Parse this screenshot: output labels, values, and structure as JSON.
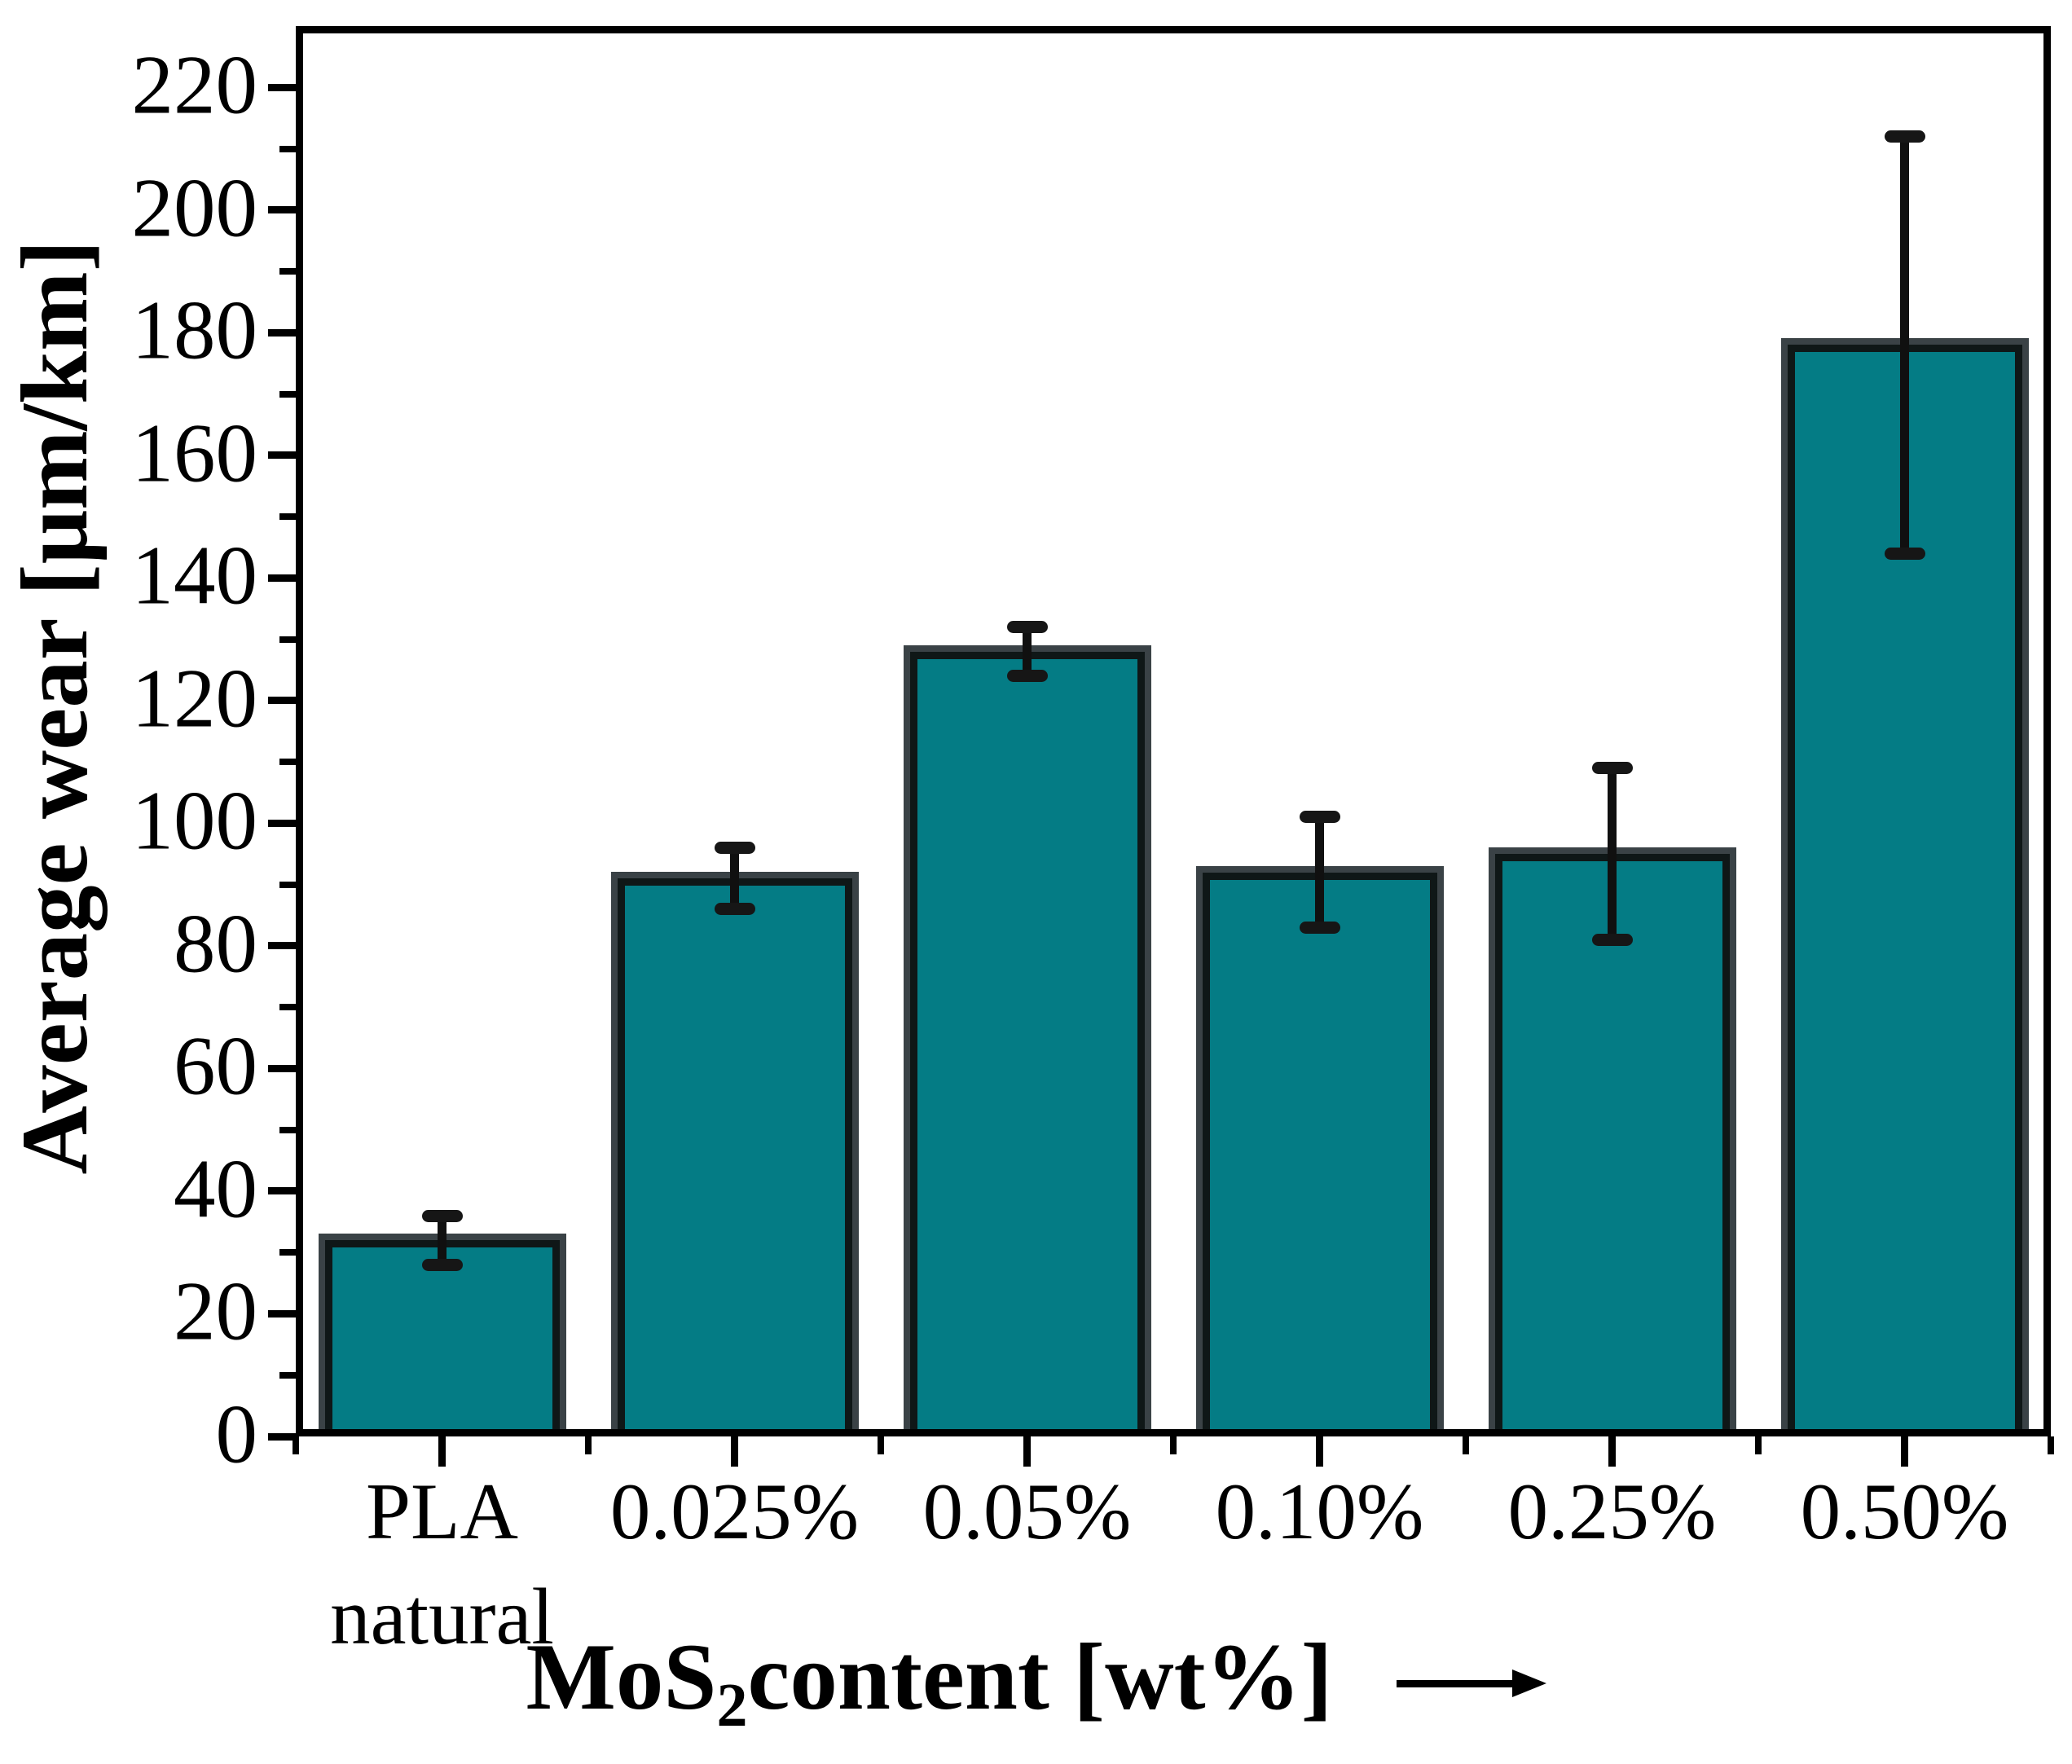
{
  "chart_data": {
    "type": "bar",
    "title": "",
    "categories": [
      {
        "label": "PLA",
        "sublabel": "natural"
      },
      {
        "label": "0.025%",
        "sublabel": ""
      },
      {
        "label": "0.05%",
        "sublabel": ""
      },
      {
        "label": "0.10%",
        "sublabel": ""
      },
      {
        "label": "0.25%",
        "sublabel": ""
      },
      {
        "label": "0.50%",
        "sublabel": ""
      }
    ],
    "values": [
      32,
      91,
      128,
      92,
      95,
      178
    ],
    "error_bars": [
      4,
      5,
      4,
      9,
      14,
      34
    ],
    "ylabel": "Average wear [μm/km]",
    "xlabel": {
      "prefix": "MoS",
      "subscript": "2",
      "suffix": " content [wt%]"
    },
    "xlabel_arrow": "right-arrow",
    "ylim": [
      0,
      230
    ],
    "yticks": [
      0,
      20,
      40,
      60,
      80,
      100,
      120,
      140,
      160,
      180,
      200,
      220
    ],
    "yminor_step": 10,
    "grid": false,
    "legend": null,
    "colors": {
      "bar_fill": "#047c85",
      "bar_edge": "#0f1717",
      "bar_shadow": "#3a4246",
      "axis": "#000000",
      "error_bar": "#101010",
      "text": "#000000",
      "background": "#ffffff"
    }
  }
}
